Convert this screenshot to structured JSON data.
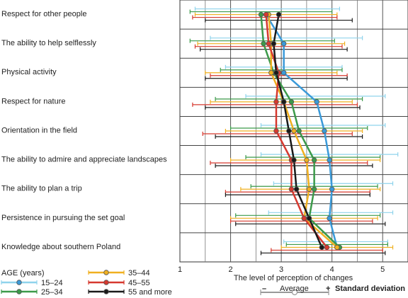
{
  "chart_data": {
    "type": "line",
    "orientation": "horizontal",
    "categories": [
      "Respect for other people",
      "The ability to help selflessly",
      "Physical activity",
      "Respect for nature",
      "Orientation in the field",
      "The ability to admire and appreciate landscapes",
      "The ability to plan a trip",
      "Persistence in pursuing the set goal",
      "Knowledge about southern Poland"
    ],
    "xlabel": "The level of perception of changes",
    "xlim": [
      1,
      5.5
    ],
    "xticks": [
      1,
      2,
      3,
      4,
      5
    ],
    "grid": true,
    "legend_title": "AGE (years)",
    "series": [
      {
        "name": "15–24",
        "color": "#3a9ad9",
        "error_color": "#8fd3ec",
        "points": [
          {
            "mean": 2.7,
            "lower": 1.3,
            "upper": 4.15
          },
          {
            "mean": 3.05,
            "lower": 1.6,
            "upper": 4.6
          },
          {
            "mean": 3.05,
            "lower": 1.9,
            "upper": 4.2
          },
          {
            "mean": 3.7,
            "lower": 2.3,
            "upper": 5.05
          },
          {
            "mean": 3.85,
            "lower": 2.6,
            "upper": 5.05
          },
          {
            "mean": 3.95,
            "lower": 2.6,
            "upper": 5.3
          },
          {
            "mean": 4.0,
            "lower": 2.85,
            "upper": 5.2
          },
          {
            "mean": 3.95,
            "lower": 2.75,
            "upper": 5.2
          },
          {
            "mean": 4.1,
            "lower": 3.05,
            "upper": 5.1
          }
        ]
      },
      {
        "name": "25–34",
        "color": "#3c9a4a",
        "error_color": "#3c9a4a",
        "points": [
          {
            "mean": 2.6,
            "lower": 1.2,
            "upper": 4.0
          },
          {
            "mean": 2.65,
            "lower": 1.2,
            "upper": 4.05
          },
          {
            "mean": 2.85,
            "lower": 1.8,
            "upper": 4.2
          },
          {
            "mean": 3.2,
            "lower": 1.7,
            "upper": 4.6
          },
          {
            "mean": 3.35,
            "lower": 2.0,
            "upper": 4.7
          },
          {
            "mean": 3.65,
            "lower": 2.3,
            "upper": 4.95
          },
          {
            "mean": 3.65,
            "lower": 2.4,
            "upper": 4.9
          },
          {
            "mean": 3.55,
            "lower": 2.1,
            "upper": 4.95
          },
          {
            "mean": 4.15,
            "lower": 3.1,
            "upper": 5.1
          }
        ]
      },
      {
        "name": "35–44",
        "color": "#f0b020",
        "error_color": "#f0b020",
        "points": [
          {
            "mean": 2.75,
            "lower": 1.3,
            "upper": 4.1
          },
          {
            "mean": 2.8,
            "lower": 1.35,
            "upper": 4.25
          },
          {
            "mean": 2.8,
            "lower": 1.5,
            "upper": 4.1
          },
          {
            "mean": 3.05,
            "lower": 1.6,
            "upper": 4.4
          },
          {
            "mean": 3.25,
            "lower": 1.9,
            "upper": 4.6
          },
          {
            "mean": 3.5,
            "lower": 2.0,
            "upper": 4.95
          },
          {
            "mean": 3.55,
            "lower": 2.2,
            "upper": 4.95
          },
          {
            "mean": 3.45,
            "lower": 2.0,
            "upper": 4.9
          },
          {
            "mean": 4.1,
            "lower": 3.0,
            "upper": 5.2
          }
        ]
      },
      {
        "name": "45–55",
        "color": "#d6392f",
        "error_color": "#d6392f",
        "points": [
          {
            "mean": 2.7,
            "lower": 1.25,
            "upper": 4.1
          },
          {
            "mean": 2.75,
            "lower": 1.3,
            "upper": 4.2
          },
          {
            "mean": 2.95,
            "lower": 1.6,
            "upper": 4.3
          },
          {
            "mean": 2.9,
            "lower": 1.25,
            "upper": 4.5
          },
          {
            "mean": 2.9,
            "lower": 1.45,
            "upper": 4.4
          },
          {
            "mean": 3.2,
            "lower": 1.6,
            "upper": 4.7
          },
          {
            "mean": 3.2,
            "lower": 1.9,
            "upper": 4.75
          },
          {
            "mean": 3.45,
            "lower": 2.0,
            "upper": 4.8
          },
          {
            "mean": 3.9,
            "lower": 2.8,
            "upper": 5.0
          }
        ]
      },
      {
        "name": "55 and more",
        "color": "#1a1a1a",
        "error_color": "#1a1a1a",
        "points": [
          {
            "mean": 2.95,
            "lower": 1.5,
            "upper": 4.4
          },
          {
            "mean": 2.85,
            "lower": 1.4,
            "upper": 4.3
          },
          {
            "mean": 2.9,
            "lower": 1.5,
            "upper": 4.3
          },
          {
            "mean": 3.05,
            "lower": 1.5,
            "upper": 4.55
          },
          {
            "mean": 3.15,
            "lower": 1.7,
            "upper": 4.6
          },
          {
            "mean": 3.25,
            "lower": 1.7,
            "upper": 4.8
          },
          {
            "mean": 3.3,
            "lower": 1.9,
            "upper": 4.75
          },
          {
            "mean": 3.55,
            "lower": 2.1,
            "upper": 5.05
          },
          {
            "mean": 3.8,
            "lower": 2.6,
            "upper": 5.05
          }
        ]
      }
    ],
    "key": {
      "minus_label": "–",
      "average_label": "Average",
      "plus_label": "+",
      "sd_label": "Standard deviation",
      "color": "#999999"
    }
  }
}
